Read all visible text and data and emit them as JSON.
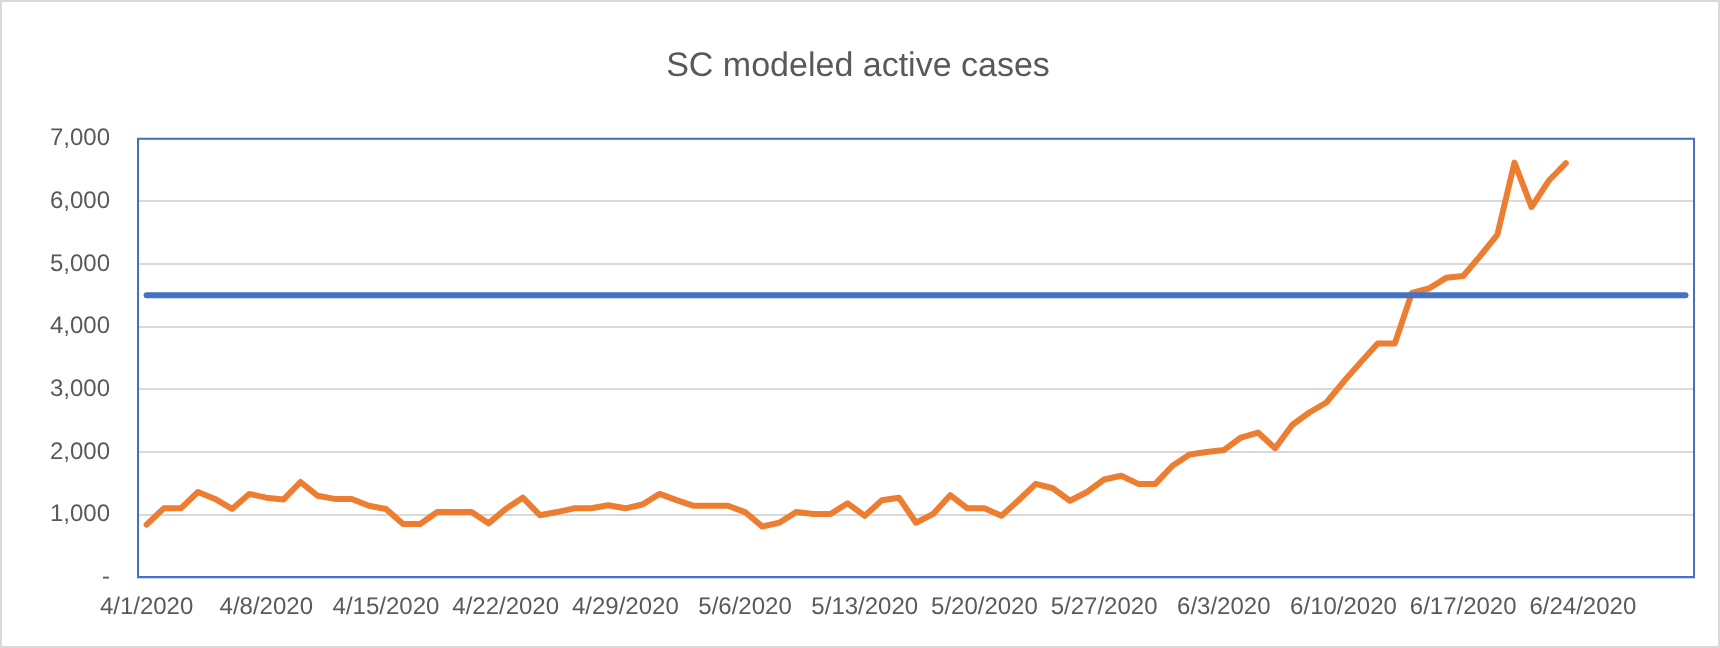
{
  "chart_data": {
    "type": "line",
    "title": "SC modeled active cases",
    "categories": [
      "4/1/2020",
      null,
      null,
      null,
      null,
      null,
      null,
      "4/8/2020",
      null,
      null,
      null,
      null,
      null,
      null,
      "4/15/2020",
      null,
      null,
      null,
      null,
      null,
      null,
      "4/22/2020",
      null,
      null,
      null,
      null,
      null,
      null,
      "4/29/2020",
      null,
      null,
      null,
      null,
      null,
      null,
      "5/6/2020",
      null,
      null,
      null,
      null,
      null,
      null,
      "5/13/2020",
      null,
      null,
      null,
      null,
      null,
      null,
      "5/20/2020",
      null,
      null,
      null,
      null,
      null,
      null,
      "5/27/2020",
      null,
      null,
      null,
      null,
      null,
      null,
      "6/3/2020",
      null,
      null,
      null,
      null,
      null,
      null,
      "6/10/2020",
      null,
      null,
      null,
      null,
      null,
      null,
      "6/17/2020",
      null,
      null,
      null,
      null,
      null,
      null,
      "6/24/2020",
      null,
      null,
      null,
      null,
      null,
      null
    ],
    "series": [
      {
        "color": "#ed7d31",
        "values": [
          840,
          1100,
          1100,
          1360,
          1250,
          1090,
          1330,
          1270,
          1240,
          1520,
          1300,
          1250,
          1250,
          1140,
          1090,
          850,
          850,
          1040,
          1040,
          1040,
          860,
          1090,
          1270,
          990,
          1040,
          1100,
          1100,
          1150,
          1100,
          1160,
          1330,
          1230,
          1140,
          1140,
          1140,
          1040,
          810,
          870,
          1040,
          1010,
          1010,
          1180,
          980,
          1230,
          1270,
          870,
          1010,
          1310,
          1100,
          1100,
          980,
          1230,
          1490,
          1420,
          1220,
          1360,
          1560,
          1620,
          1490,
          1490,
          1780,
          1960,
          2000,
          2030,
          2230,
          2310,
          2060,
          2430,
          2630,
          2790,
          3120,
          3430,
          3730,
          3730,
          4540,
          4610,
          4780,
          4810,
          5130,
          5470,
          6620,
          5910,
          6330,
          6610,
          null,
          null,
          null,
          null,
          null,
          null,
          null
        ]
      },
      {
        "color": "#4472c4",
        "values": [
          4500,
          4500,
          4500,
          4500,
          4500,
          4500,
          4500,
          4500,
          4500,
          4500,
          4500,
          4500,
          4500,
          4500,
          4500,
          4500,
          4500,
          4500,
          4500,
          4500,
          4500,
          4500,
          4500,
          4500,
          4500,
          4500,
          4500,
          4500,
          4500,
          4500,
          4500,
          4500,
          4500,
          4500,
          4500,
          4500,
          4500,
          4500,
          4500,
          4500,
          4500,
          4500,
          4500,
          4500,
          4500,
          4500,
          4500,
          4500,
          4500,
          4500,
          4500,
          4500,
          4500,
          4500,
          4500,
          4500,
          4500,
          4500,
          4500,
          4500,
          4500,
          4500,
          4500,
          4500,
          4500,
          4500,
          4500,
          4500,
          4500,
          4500,
          4500,
          4500,
          4500,
          4500,
          4500,
          4500,
          4500,
          4500,
          4500,
          4500,
          4500,
          4500,
          4500,
          4500,
          4500,
          4500,
          4500,
          4500,
          4500,
          4500,
          4500
        ]
      }
    ],
    "ylim": [
      0,
      7000
    ],
    "yticks": [
      {
        "value": 0,
        "label": "-"
      },
      {
        "value": 1000,
        "label": "1,000"
      },
      {
        "value": 2000,
        "label": "2,000"
      },
      {
        "value": 3000,
        "label": "3,000"
      },
      {
        "value": 4000,
        "label": "4,000"
      },
      {
        "value": 5000,
        "label": "5,000"
      },
      {
        "value": 6000,
        "label": "6,000"
      },
      {
        "value": 7000,
        "label": "7,000"
      }
    ],
    "grid": "y",
    "legend": false,
    "marker": "none",
    "line_style": "solid"
  }
}
